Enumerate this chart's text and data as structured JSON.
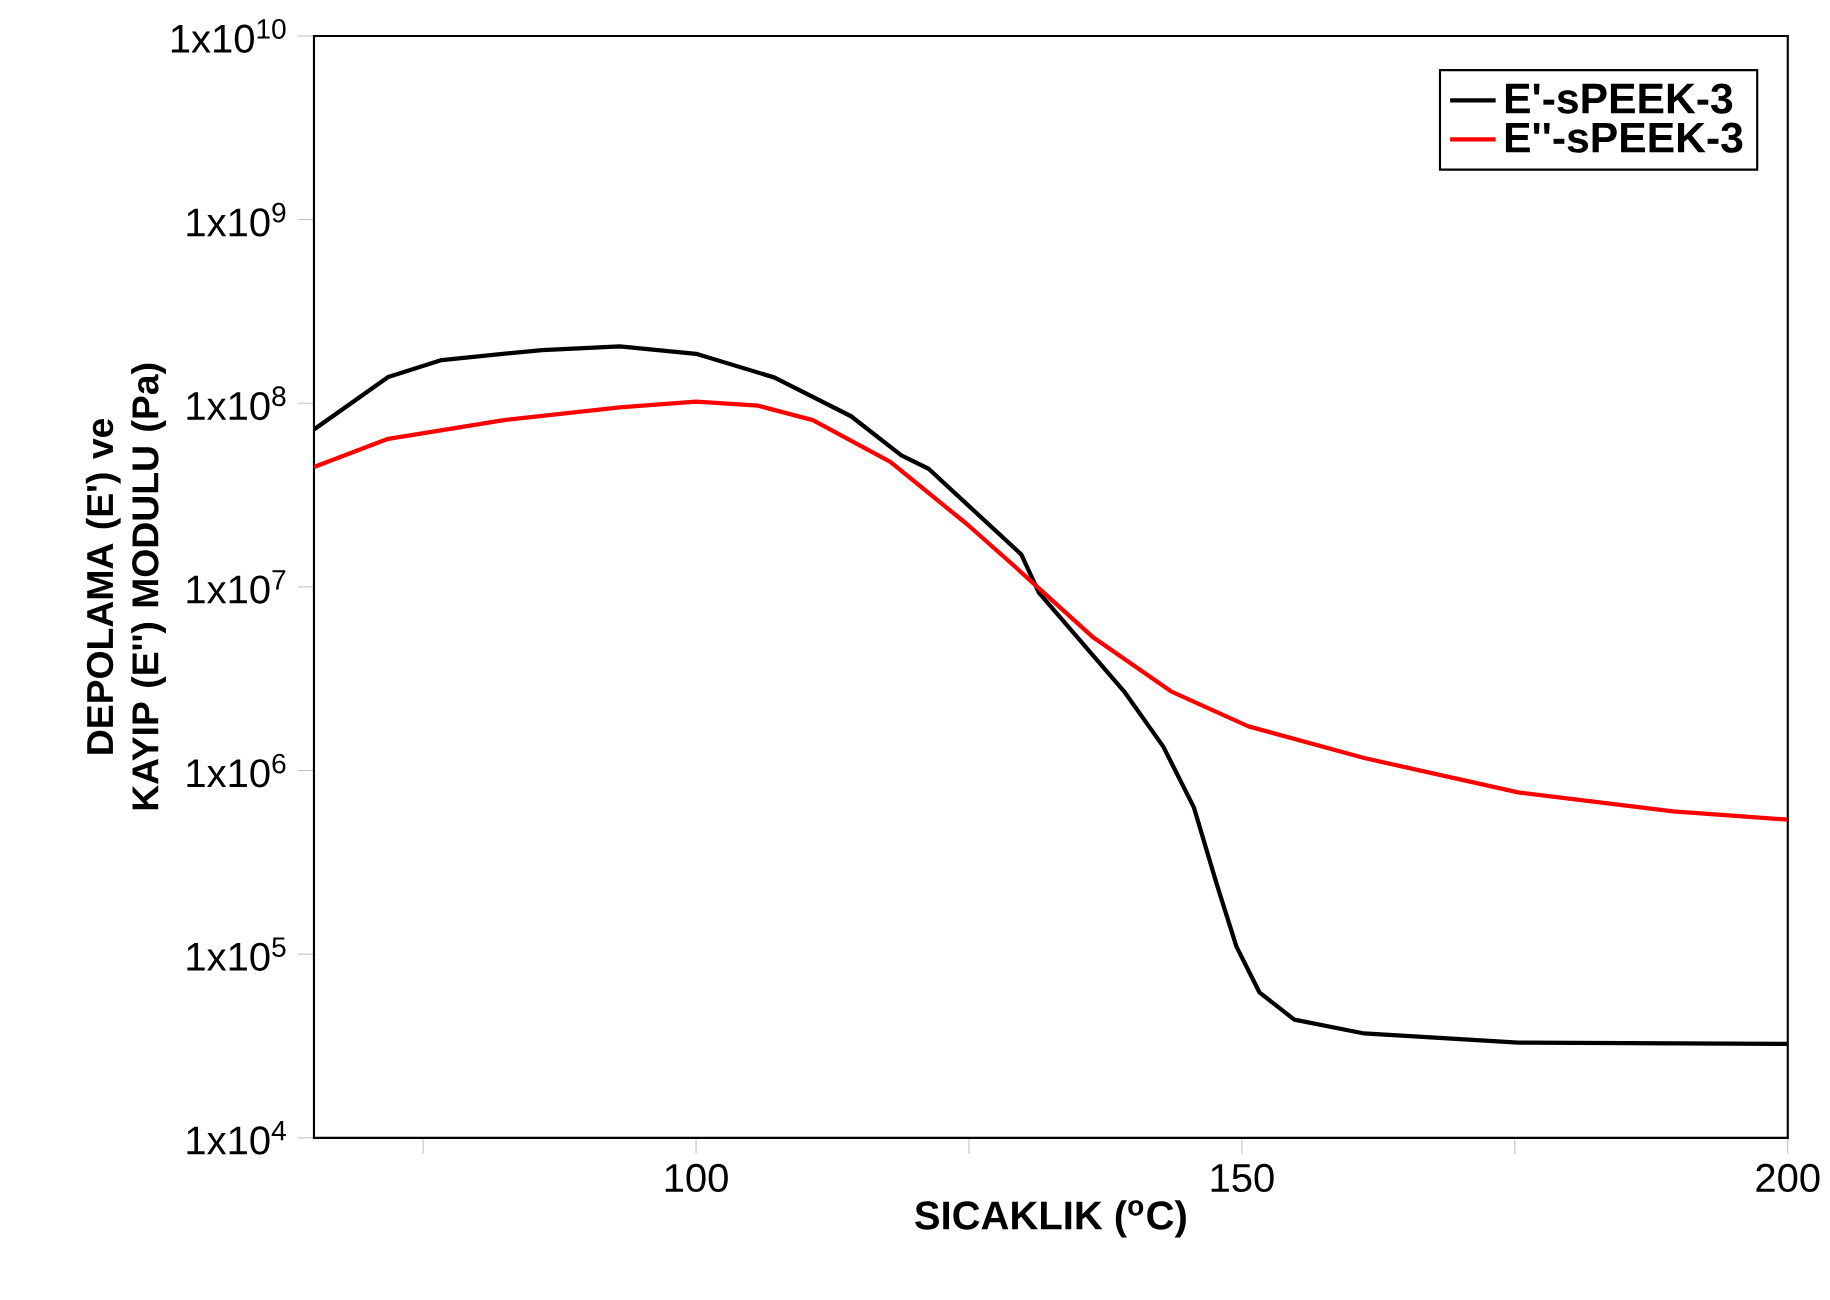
{
  "chart_data": {
    "type": "line",
    "xlabel": "SICAKLIK ($^{o}$C)",
    "ylabel": "DEPOLAMA (E') ve KAYIP (E'') MODULU (Pa)",
    "log": "y",
    "grid": false,
    "legend": "top right",
    "line_style": "solid",
    "marker": "none",
    "xlim": [
      65,
      200
    ],
    "xticks": [
      {
        "value": 75,
        "label": null
      },
      100,
      {
        "value": 125,
        "label": null
      },
      150,
      {
        "value": 175,
        "label": null
      },
      200
    ],
    "ylim": [
      10000,
      10000000000
    ],
    "yticks": [
      {
        "value": 10000,
        "label": "1x10$^{4}$"
      },
      {
        "value": 100000,
        "label": "1x10$^{5}$"
      },
      {
        "value": 1000000,
        "label": "1x10$^{6}$"
      },
      {
        "value": 10000000,
        "label": "1x10$^{7}$"
      },
      {
        "value": 100000000,
        "label": "1x10$^{8}$"
      },
      {
        "value": 1000000000,
        "label": "1x10$^{9}$"
      },
      {
        "value": 10000000000,
        "label": "1x10$^{10}$"
      }
    ],
    "series": [
      {
        "name": "E'-sPEEK-3",
        "color": "#000000",
        "x": [
          65,
          71.8,
          76.7,
          85.9,
          93,
          100,
          107.2,
          114.2,
          118.8,
          121.3,
          129.8,
          131.4,
          139.2,
          142.8,
          145.6,
          147.7,
          149.5,
          151.6,
          154.8,
          161.2,
          175.3,
          200
        ],
        "values": [
          72000000,
          139000000,
          172000000,
          195000000,
          204000000,
          186000000,
          138000000,
          85000000,
          52000000,
          44000000,
          15000000,
          9300000,
          2700000,
          1350000,
          630000,
          240000,
          110000,
          62000,
          44000,
          37000,
          33000,
          32500
        ]
      },
      {
        "name": "E''-sPEEK-3",
        "color": "#ff0000",
        "x": [
          65,
          71.8,
          82.4,
          93,
          100,
          105.7,
          110.7,
          117.8,
          124.8,
          129.4,
          136.4,
          143.5,
          150.6,
          161.2,
          175.3,
          189.5,
          200
        ],
        "values": [
          45000000,
          64000000,
          81000000,
          95000000,
          102000000,
          97000000,
          81000000,
          48000000,
          22000000,
          12600000,
          5300000,
          2700000,
          1740000,
          1170000,
          760000,
          600000,
          540000
        ]
      }
    ]
  }
}
